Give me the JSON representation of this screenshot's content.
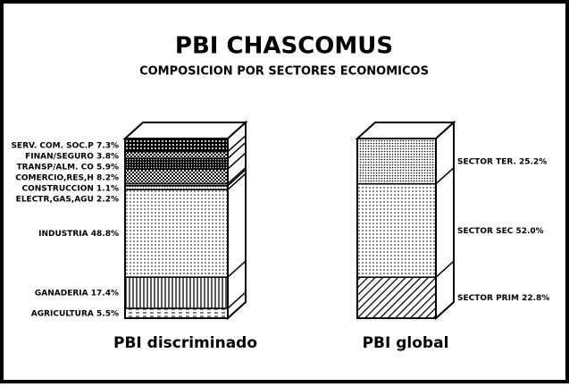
{
  "title": "PBI CHASCOMUS",
  "subtitle": "COMPOSICION POR SECTORES ECONOMICOS",
  "chart_data": [
    {
      "type": "stacked_column",
      "label": "PBI discriminado",
      "categories": [
        "AGRICULTURA",
        "GANADERIA",
        "INDUSTRIA",
        "ELECTR,GAS,AGU",
        "CONSTRUCCION",
        "COMERCIO,RES,H",
        "TRANSP/ALM. CO",
        "FINAN/SEGURO",
        "SERV. COM. SOC.P"
      ],
      "values": [
        5.5,
        17.4,
        48.8,
        2.2,
        1.1,
        8.2,
        5.9,
        3.8,
        7.3
      ],
      "value_labels": [
        "5.5%",
        "17.4%",
        "48.8%",
        "2.2%",
        "1.1%",
        "8.2%",
        "5.9%",
        "3.8%",
        "7.3%"
      ]
    },
    {
      "type": "stacked_column",
      "label": "PBI global",
      "categories": [
        "SECTOR PRIM",
        "SECTOR SEC",
        "SECTOR TER."
      ],
      "values": [
        22.8,
        52.0,
        25.2
      ],
      "value_labels": [
        "22.8%",
        "52.0%",
        "25.2%"
      ]
    }
  ]
}
